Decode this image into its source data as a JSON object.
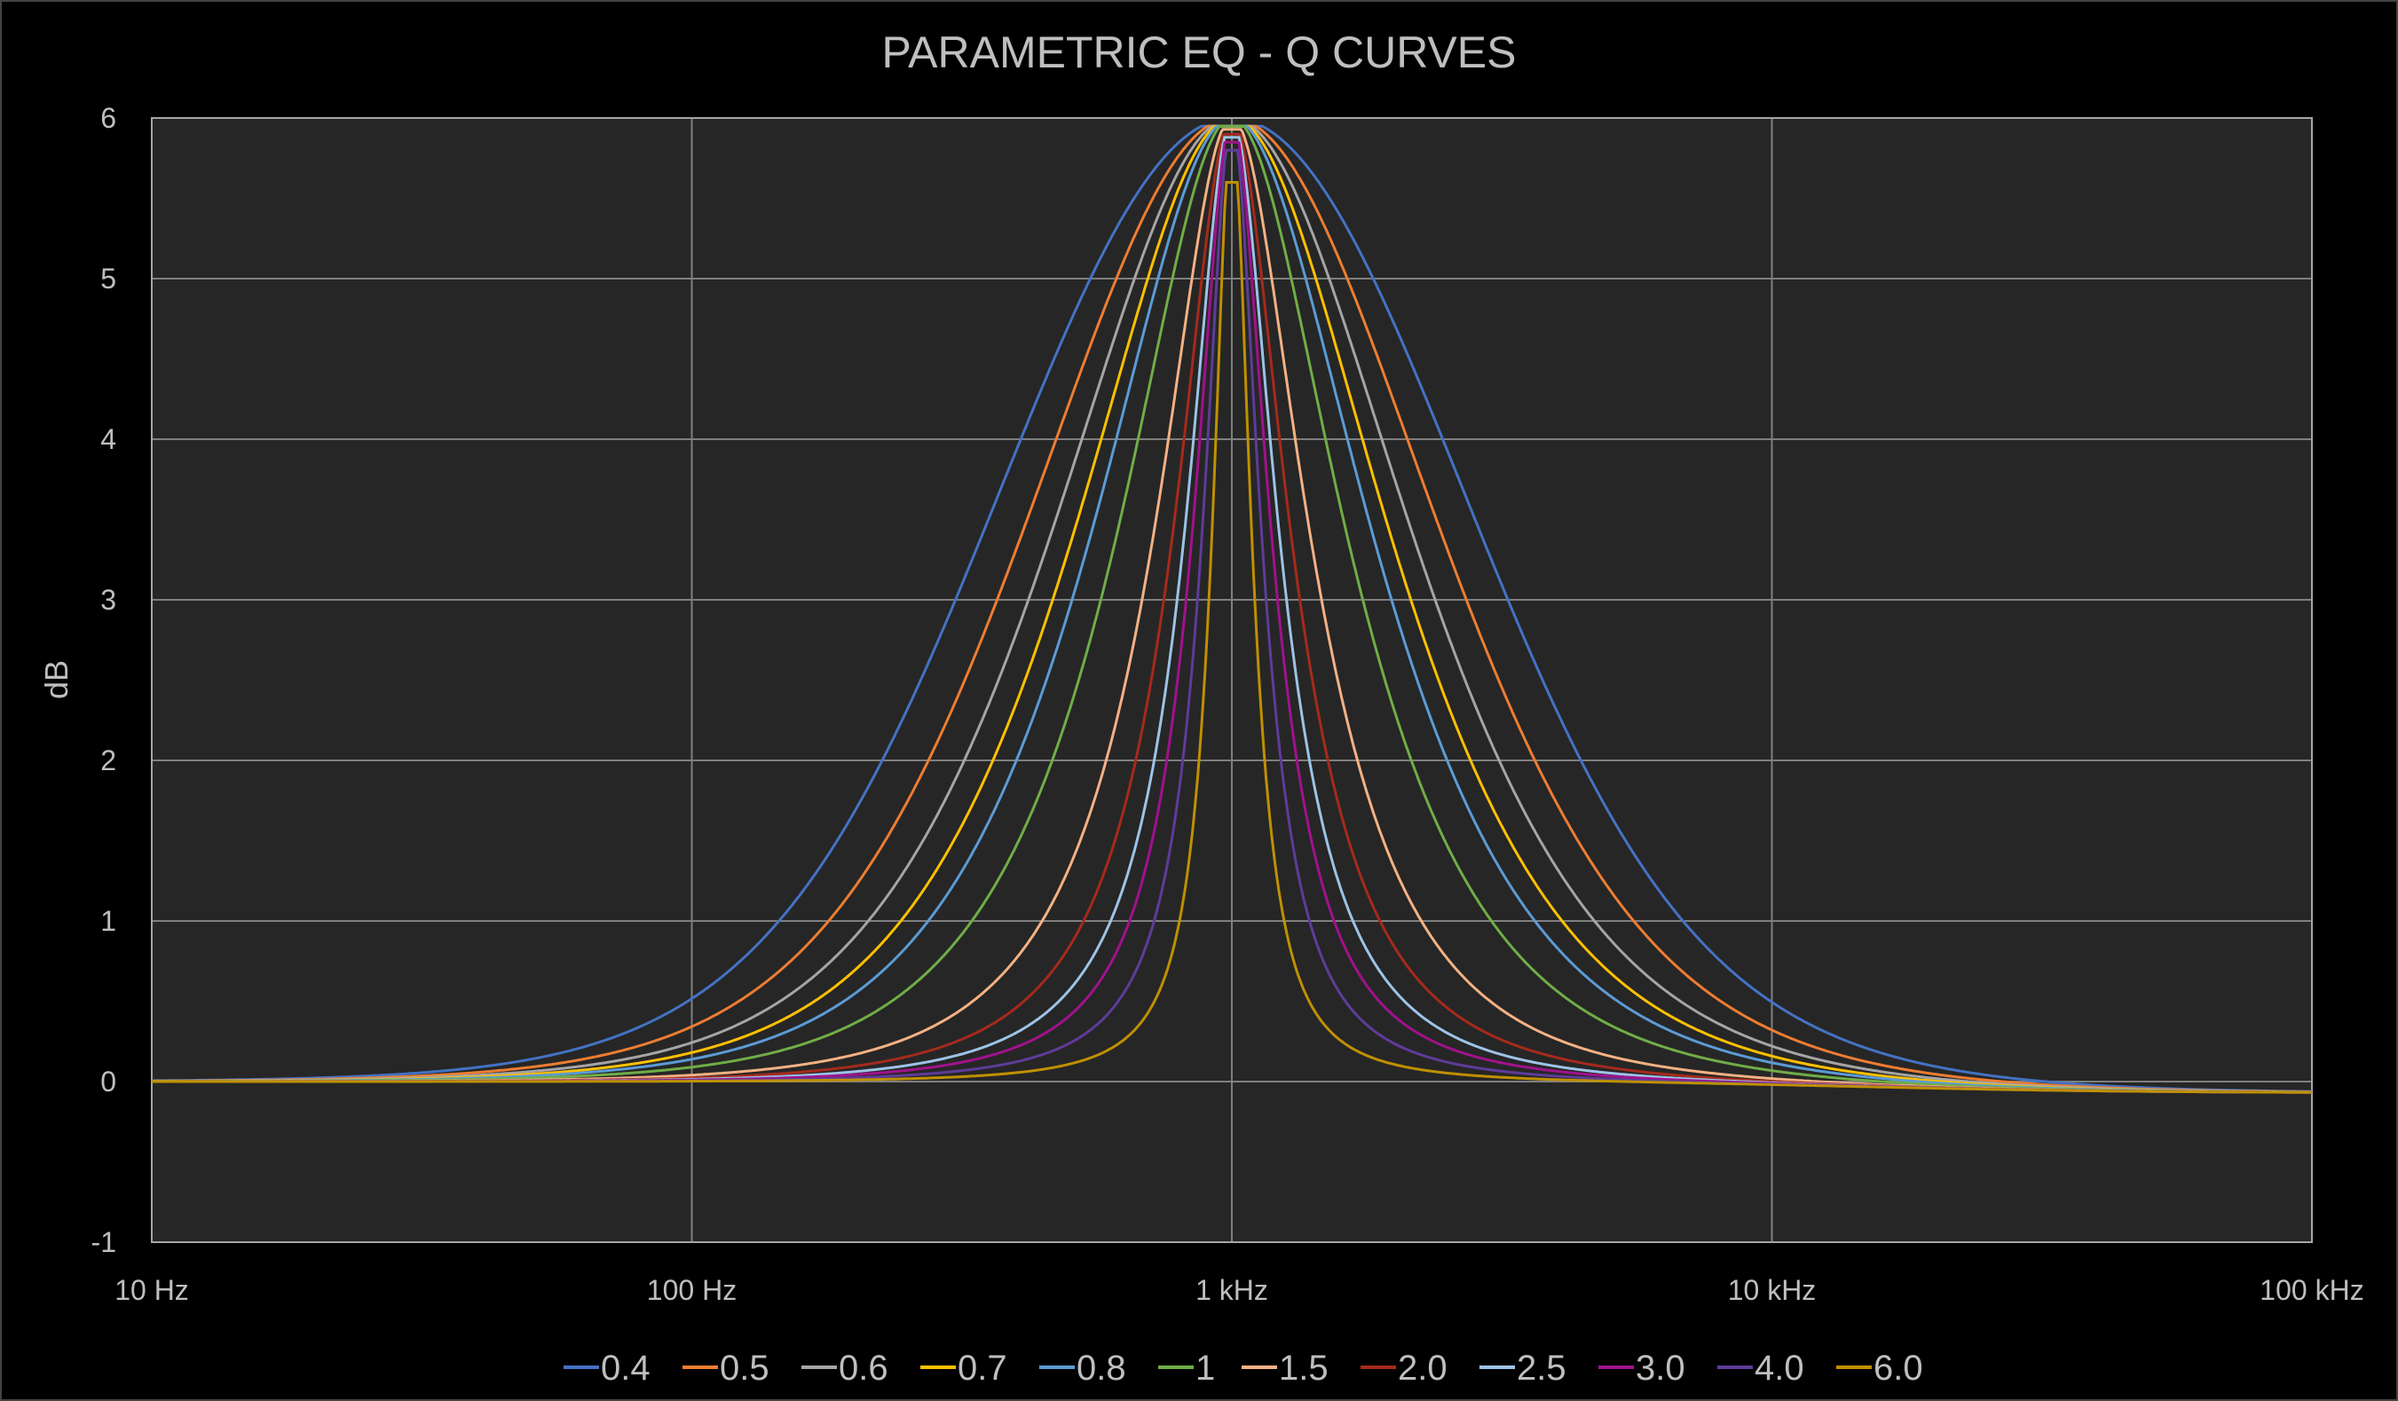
{
  "chart_data": {
    "type": "line",
    "title": "PARAMETRIC EQ - Q CURVES",
    "xlabel": "",
    "ylabel": "dB",
    "xscale": "log",
    "xlim": [
      10,
      100000
    ],
    "ylim": [
      -1,
      6
    ],
    "x_ticks": [
      {
        "value": 10,
        "label": "10 Hz"
      },
      {
        "value": 100,
        "label": "100 Hz"
      },
      {
        "value": 1000,
        "label": "1 kHz"
      },
      {
        "value": 10000,
        "label": "10 kHz"
      },
      {
        "value": 100000,
        "label": "100 kHz"
      }
    ],
    "y_ticks": [
      {
        "value": 6,
        "label": "6"
      },
      {
        "value": 5,
        "label": "5"
      },
      {
        "value": 4,
        "label": "4"
      },
      {
        "value": 3,
        "label": "3"
      },
      {
        "value": 2,
        "label": "2"
      },
      {
        "value": 1,
        "label": "1"
      },
      {
        "value": 0,
        "label": "0"
      },
      {
        "value": -1,
        "label": "-1"
      }
    ],
    "grid": true,
    "legend_position": "bottom",
    "center_frequency_hz": 1000,
    "gain_db": 6,
    "series": [
      {
        "name": "0.4",
        "q": 0.4,
        "peak_db": 5.95,
        "color": "#4472C4"
      },
      {
        "name": "0.5",
        "q": 0.5,
        "peak_db": 5.95,
        "color": "#ED7D31"
      },
      {
        "name": "0.6",
        "q": 0.6,
        "peak_db": 5.95,
        "color": "#A5A5A5"
      },
      {
        "name": "0.7",
        "q": 0.7,
        "peak_db": 5.95,
        "color": "#FFC000"
      },
      {
        "name": "0.8",
        "q": 0.8,
        "peak_db": 5.95,
        "color": "#5B9BD5"
      },
      {
        "name": "1",
        "q": 1.0,
        "peak_db": 5.95,
        "color": "#70AD47"
      },
      {
        "name": "1.5",
        "q": 1.5,
        "peak_db": 5.93,
        "color": "#F4B183"
      },
      {
        "name": "2.0",
        "q": 2.0,
        "peak_db": 5.9,
        "color": "#A52A1C"
      },
      {
        "name": "2.5",
        "q": 2.5,
        "peak_db": 5.88,
        "color": "#9DC3E6"
      },
      {
        "name": "3.0",
        "q": 3.0,
        "peak_db": 5.85,
        "color": "#A0128C"
      },
      {
        "name": "4.0",
        "q": 4.0,
        "peak_db": 5.8,
        "color": "#5E3C99"
      },
      {
        "name": "6.0",
        "q": 6.0,
        "peak_db": 5.6,
        "color": "#BF9000"
      }
    ]
  }
}
